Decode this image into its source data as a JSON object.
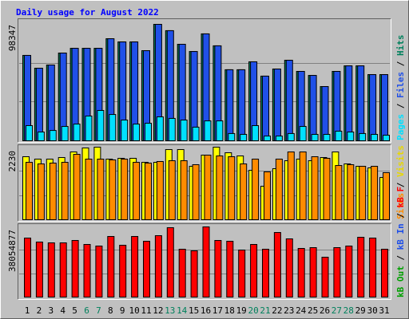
{
  "chart_data": [
    {
      "type": "bar",
      "title": "Daily usage for August 2022",
      "ylim": [
        0,
        98347
      ],
      "yticks": [
        98347
      ],
      "legend_separator": " / ",
      "series": [
        {
          "name": "Hits",
          "color": "#00805c",
          "values": [
            72100,
            61300,
            64000,
            74100,
            78100,
            78100,
            78100,
            86200,
            83500,
            83500,
            76100,
            98347,
            93000,
            81500,
            75400,
            90300,
            80200,
            60000,
            60000,
            66700,
            54600,
            60600,
            68000,
            58600,
            55200,
            45800,
            58600,
            63300,
            63300,
            55900,
            55900
          ]
        },
        {
          "name": "Files",
          "color": "#2050e8",
          "values": [
            72100,
            61300,
            64000,
            74100,
            78100,
            78100,
            78100,
            86200,
            83500,
            83500,
            76100,
            98347,
            93000,
            81500,
            75400,
            90300,
            80200,
            60000,
            60000,
            66700,
            54600,
            60600,
            68000,
            58600,
            55200,
            45800,
            58600,
            63300,
            63300,
            55900,
            55900
          ]
        },
        {
          "name": "Pages",
          "color": "#00e0ff",
          "values": [
            12800,
            7400,
            8700,
            12100,
            14100,
            20900,
            25600,
            22200,
            17500,
            14100,
            14800,
            20200,
            18900,
            17500,
            11500,
            16800,
            16800,
            6100,
            5400,
            12800,
            4000,
            4000,
            6100,
            12100,
            5400,
            5400,
            8100,
            7400,
            6100,
            5400,
            4700
          ]
        }
      ]
    },
    {
      "type": "bar",
      "ylim": [
        0,
        2230
      ],
      "yticks": [
        2230
      ],
      "legend_separator": " / ",
      "series": [
        {
          "name": "Visits",
          "color": "#ffff00",
          "values": [
            1936,
            1862,
            1862,
            1911,
            2083,
            2205,
            2230,
            1862,
            1887,
            1887,
            1764,
            1764,
            2156,
            2156,
            1642,
            1985,
            2230,
            2058,
            1960,
            1519,
            1029,
            1568,
            1813,
            1862,
            1813,
            1911,
            2083,
            1715,
            1642,
            1593,
            1299
          ]
        },
        {
          "name": "Sites",
          "color": "#ff8c00",
          "values": [
            1764,
            1715,
            1740,
            1764,
            2009,
            1862,
            1862,
            1838,
            1862,
            1764,
            1740,
            1789,
            1813,
            1813,
            1691,
            1985,
            1960,
            1936,
            1715,
            1862,
            1470,
            1862,
            2083,
            2083,
            1936,
            1887,
            1666,
            1691,
            1642,
            1642,
            1446
          ]
        }
      ]
    },
    {
      "type": "bar",
      "ylim": [
        0,
        38054877
      ],
      "yticks": [
        38054877
      ],
      "legend_separator": " / ",
      "categories": [
        "1",
        "2",
        "3",
        "4",
        "5",
        "6",
        "7",
        "8",
        "9",
        "10",
        "11",
        "12",
        "13",
        "14",
        "15",
        "16",
        "17",
        "18",
        "19",
        "20",
        "21",
        "22",
        "23",
        "24",
        "25",
        "26",
        "27",
        "28",
        "29",
        "30",
        "31"
      ],
      "category_colors": [
        "#000",
        "#000",
        "#000",
        "#000",
        "#000",
        "#00805c",
        "#00805c",
        "#000",
        "#000",
        "#000",
        "#000",
        "#000",
        "#00805c",
        "#00805c",
        "#000",
        "#000",
        "#000",
        "#000",
        "#000",
        "#00805c",
        "#00805c",
        "#000",
        "#000",
        "#000",
        "#000",
        "#000",
        "#00805c",
        "#00805c",
        "#000",
        "#000",
        "#000"
      ],
      "series": [
        {
          "name": "kB F",
          "color": "#ff0000",
          "values": [
            32000000,
            29840000,
            29400000,
            29400000,
            30700000,
            28540000,
            27670000,
            32870000,
            28100000,
            32870000,
            30270000,
            33300000,
            37630000,
            25950000,
            25080000,
            38054877,
            30700000,
            30270000,
            25500000,
            28540000,
            25950000,
            35020000,
            31570000,
            26380000,
            26810000,
            21620000,
            26810000,
            27670000,
            32430000,
            32000000,
            25950000
          ]
        },
        {
          "name": "kB In",
          "color": "#2050e8",
          "values": [
            0,
            0,
            0,
            0,
            0,
            0,
            0,
            0,
            0,
            0,
            0,
            0,
            0,
            0,
            0,
            0,
            0,
            0,
            0,
            0,
            0,
            0,
            0,
            0,
            0,
            0,
            0,
            0,
            0,
            0,
            0
          ]
        },
        {
          "name": "kB Out",
          "color": "#00a000",
          "values": [
            0,
            0,
            0,
            0,
            0,
            0,
            0,
            0,
            0,
            0,
            0,
            0,
            0,
            0,
            0,
            0,
            0,
            0,
            0,
            0,
            0,
            0,
            0,
            0,
            0,
            0,
            0,
            0,
            0,
            0,
            0
          ]
        }
      ]
    }
  ]
}
